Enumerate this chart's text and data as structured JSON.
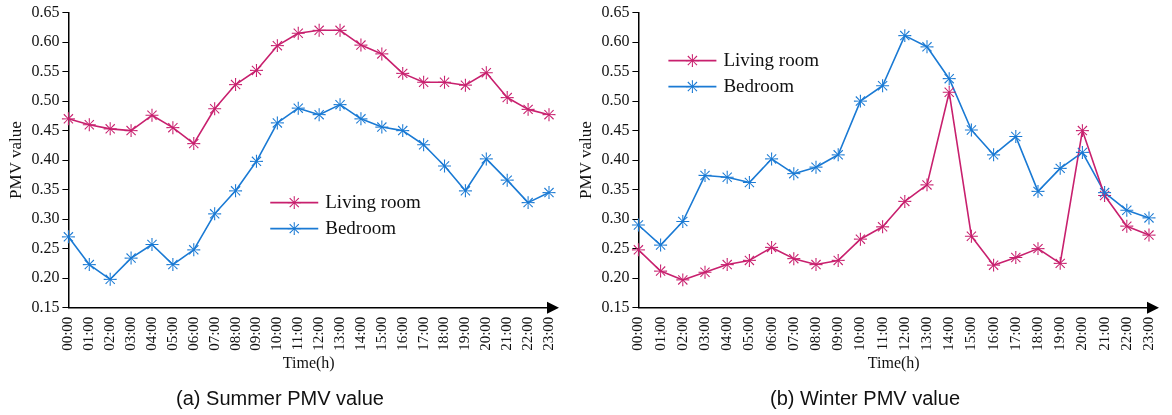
{
  "chart_data": [
    {
      "type": "line",
      "title": "(a) Summer PMV value",
      "xlabel": "Time(h)",
      "ylabel": "PMV value",
      "categories": [
        "00:00",
        "01:00",
        "02:00",
        "03:00",
        "04:00",
        "05:00",
        "06:00",
        "07:00",
        "08:00",
        "09:00",
        "10:00",
        "11:00",
        "12:00",
        "13:00",
        "14:00",
        "15:00",
        "16:00",
        "17:00",
        "18:00",
        "19:00",
        "20:00",
        "21:00",
        "22:00",
        "23:00"
      ],
      "series": [
        {
          "name": "Living room",
          "color": "#c8206e",
          "values": [
            0.47,
            0.46,
            0.453,
            0.45,
            0.476,
            0.455,
            0.428,
            0.487,
            0.528,
            0.552,
            0.594,
            0.615,
            0.62,
            0.62,
            0.595,
            0.58,
            0.547,
            0.532,
            0.532,
            0.527,
            0.548,
            0.506,
            0.486,
            0.477
          ]
        },
        {
          "name": "Bedroom",
          "color": "#1a7ad4",
          "values": [
            0.27,
            0.223,
            0.198,
            0.234,
            0.257,
            0.223,
            0.248,
            0.309,
            0.348,
            0.398,
            0.463,
            0.488,
            0.477,
            0.494,
            0.47,
            0.456,
            0.45,
            0.426,
            0.39,
            0.348,
            0.402,
            0.366,
            0.328,
            0.345
          ]
        }
      ],
      "ylim": [
        0.15,
        0.65
      ],
      "yticks": [
        0.15,
        {
          "value": 0.2,
          "label": "0.20"
        },
        0.25,
        {
          "value": 0.3,
          "label": "0.30"
        },
        0.35,
        {
          "value": 0.4,
          "label": "0.40"
        },
        0.45,
        {
          "value": 0.5,
          "label": "0.50"
        },
        0.55,
        {
          "value": 0.6,
          "label": "0.60"
        },
        0.65
      ],
      "grid": false,
      "legend": "bottom",
      "marker": "star",
      "line_style": "solid"
    },
    {
      "type": "line",
      "title": "(b) Winter PMV value",
      "xlabel": "Time(h)",
      "ylabel": "PMV value",
      "categories": [
        "00:00",
        "01:00",
        "02:00",
        "03:00",
        "04:00",
        "05:00",
        "06:00",
        "07:00",
        "08:00",
        "09:00",
        "10:00",
        "11:00",
        "12:00",
        "13:00",
        "14:00",
        "15:00",
        "16:00",
        "17:00",
        "18:00",
        "19:00",
        "20:00",
        "21:00",
        "22:00",
        "23:00"
      ],
      "series": [
        {
          "name": "Living room",
          "color": "#c8206e",
          "values": [
            0.248,
            0.212,
            0.197,
            0.21,
            0.223,
            0.23,
            0.252,
            0.233,
            0.223,
            0.23,
            0.266,
            0.287,
            0.33,
            0.358,
            0.515,
            0.271,
            0.222,
            0.235,
            0.25,
            0.225,
            0.45,
            0.34,
            0.288,
            0.273
          ]
        },
        {
          "name": "Bedroom",
          "color": "#1a7ad4",
          "values": [
            0.29,
            0.256,
            0.296,
            0.374,
            0.371,
            0.362,
            0.402,
            0.377,
            0.388,
            0.409,
            0.5,
            0.526,
            0.611,
            0.592,
            0.538,
            0.451,
            0.409,
            0.44,
            0.347,
            0.386,
            0.413,
            0.345,
            0.315,
            0.302
          ]
        }
      ],
      "ylim": [
        0.15,
        0.65
      ],
      "yticks": [
        0.15,
        {
          "value": 0.2,
          "label": "0.20"
        },
        0.25,
        {
          "value": 0.3,
          "label": "0.30"
        },
        0.35,
        {
          "value": 0.4,
          "label": "0.40"
        },
        0.45,
        {
          "value": 0.5,
          "label": "0.50"
        },
        0.55,
        {
          "value": 0.6,
          "label": "0.60"
        },
        0.65
      ],
      "grid": false,
      "legend": "top left",
      "marker": "star",
      "line_style": "solid"
    }
  ]
}
